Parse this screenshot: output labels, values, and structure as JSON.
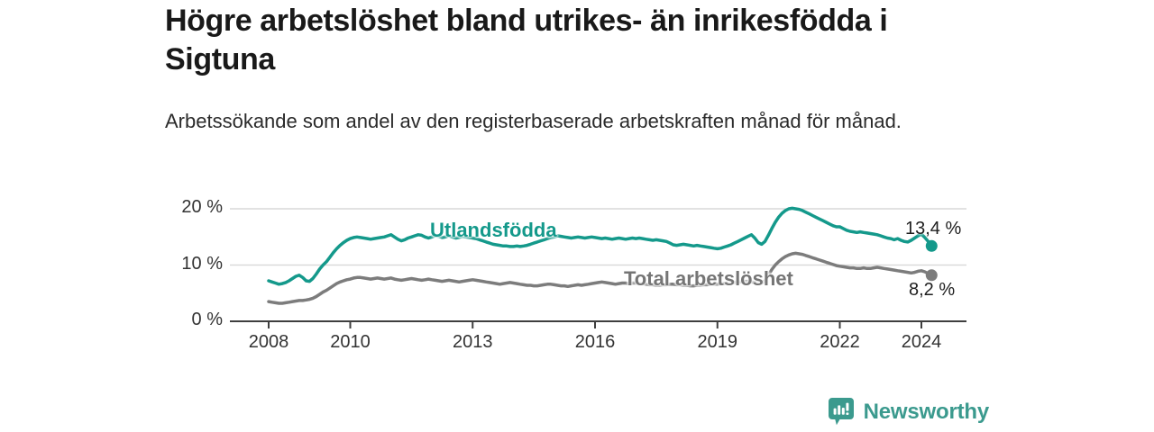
{
  "header": {
    "title": "Högre arbetslöshet bland utrikes- än inrikesfödda i Sigtuna",
    "subtitle": "Arbetssökande som andel av den registerbaserade arbetskraften månad för månad."
  },
  "chart_data": {
    "type": "line",
    "title": "Högre arbetslöshet bland utrikes- än inrikesfödda i Sigtuna",
    "subtitle": "Arbetssökande som andel av den registerbaserade arbetskraften månad för månad.",
    "x_unit": "month",
    "x_start_year": 2008,
    "x_end": "2024-04",
    "xticks": [
      2008,
      2010,
      2013,
      2016,
      2019,
      2022,
      2024
    ],
    "ytick_values": [
      0,
      10,
      20
    ],
    "ytick_labels": [
      "0 %",
      "10 %",
      "20 %"
    ],
    "ylim": [
      0,
      21.6
    ],
    "grid": "horizontal",
    "legend_position": "inline-on-lines",
    "axis_color": "#3f3f3f",
    "grid_color": "#d9d9d9",
    "series": [
      {
        "name": "Utlandsfödda",
        "color": "#14998b",
        "end_label": "13,4 %",
        "end_value": 13.4,
        "values": [
          7.2,
          7.0,
          6.8,
          6.6,
          6.7,
          6.9,
          7.2,
          7.6,
          8.0,
          8.2,
          7.8,
          7.2,
          7.1,
          7.6,
          8.4,
          9.3,
          10.0,
          10.6,
          11.4,
          12.2,
          12.9,
          13.5,
          14.0,
          14.4,
          14.7,
          14.9,
          15.0,
          14.9,
          14.8,
          14.7,
          14.6,
          14.7,
          14.8,
          14.9,
          15.0,
          15.2,
          15.4,
          15.0,
          14.6,
          14.3,
          14.5,
          14.8,
          15.0,
          15.2,
          15.4,
          15.3,
          15.0,
          14.8,
          15.0,
          15.2,
          15.1,
          14.9,
          15.0,
          15.2,
          15.0,
          14.8,
          14.9,
          15.1,
          15.0,
          14.9,
          14.8,
          14.7,
          14.5,
          14.3,
          14.1,
          13.9,
          13.7,
          13.6,
          13.5,
          13.4,
          13.4,
          13.3,
          13.3,
          13.4,
          13.3,
          13.4,
          13.5,
          13.7,
          13.9,
          14.1,
          14.3,
          14.5,
          14.7,
          14.9,
          15.0,
          15.2,
          15.1,
          15.0,
          14.9,
          14.8,
          14.9,
          15.0,
          14.9,
          14.8,
          14.9,
          15.0,
          14.9,
          14.8,
          14.7,
          14.8,
          14.7,
          14.6,
          14.7,
          14.8,
          14.7,
          14.6,
          14.7,
          14.8,
          14.7,
          14.8,
          14.7,
          14.6,
          14.5,
          14.4,
          14.5,
          14.4,
          14.3,
          14.2,
          13.9,
          13.6,
          13.5,
          13.6,
          13.7,
          13.6,
          13.5,
          13.4,
          13.5,
          13.4,
          13.3,
          13.2,
          13.1,
          13.0,
          12.9,
          13.0,
          13.2,
          13.4,
          13.6,
          13.9,
          14.2,
          14.5,
          14.8,
          15.1,
          15.4,
          14.8,
          14.0,
          13.7,
          14.2,
          15.3,
          16.5,
          17.6,
          18.5,
          19.2,
          19.7,
          20.0,
          20.1,
          20.0,
          19.9,
          19.7,
          19.4,
          19.1,
          18.8,
          18.5,
          18.2,
          17.9,
          17.6,
          17.3,
          17.0,
          16.8,
          16.8,
          16.5,
          16.2,
          16.0,
          15.9,
          15.8,
          15.9,
          15.8,
          15.7,
          15.6,
          15.5,
          15.4,
          15.2,
          15.0,
          14.8,
          14.7,
          14.5,
          14.7,
          14.4,
          14.2,
          14.1,
          14.4,
          14.8,
          15.2,
          15.5,
          14.9,
          14.2,
          13.4
        ]
      },
      {
        "name": "Total arbetslöshet",
        "color": "#7c7c7c",
        "end_label": "8,2 %",
        "end_value": 8.2,
        "values": [
          3.5,
          3.4,
          3.3,
          3.2,
          3.2,
          3.3,
          3.4,
          3.5,
          3.6,
          3.7,
          3.7,
          3.8,
          3.9,
          4.1,
          4.4,
          4.8,
          5.2,
          5.5,
          5.9,
          6.3,
          6.7,
          7.0,
          7.2,
          7.4,
          7.5,
          7.7,
          7.8,
          7.8,
          7.7,
          7.6,
          7.5,
          7.6,
          7.7,
          7.6,
          7.5,
          7.6,
          7.7,
          7.5,
          7.4,
          7.3,
          7.4,
          7.5,
          7.6,
          7.5,
          7.4,
          7.3,
          7.4,
          7.5,
          7.4,
          7.3,
          7.2,
          7.1,
          7.2,
          7.3,
          7.2,
          7.1,
          7.0,
          7.1,
          7.2,
          7.3,
          7.4,
          7.3,
          7.2,
          7.1,
          7.0,
          6.9,
          6.8,
          6.7,
          6.6,
          6.7,
          6.8,
          6.9,
          6.8,
          6.7,
          6.6,
          6.5,
          6.4,
          6.4,
          6.3,
          6.3,
          6.4,
          6.5,
          6.6,
          6.6,
          6.5,
          6.4,
          6.3,
          6.3,
          6.2,
          6.3,
          6.4,
          6.5,
          6.4,
          6.5,
          6.6,
          6.7,
          6.8,
          6.9,
          7.0,
          6.9,
          6.8,
          6.7,
          6.6,
          6.7,
          6.8,
          6.8,
          6.7,
          6.8,
          6.8,
          6.7,
          6.7,
          6.6,
          6.5,
          6.5,
          6.4,
          6.4,
          6.5,
          6.5,
          6.6,
          6.6,
          6.5,
          6.5,
          6.4,
          6.4,
          6.3,
          6.3,
          6.4,
          6.4,
          6.5,
          6.5,
          6.6,
          6.6,
          6.6,
          6.7,
          6.7,
          6.8,
          6.8,
          6.9,
          7.0,
          7.0,
          7.1,
          7.1,
          7.0,
          6.9,
          6.9,
          6.8,
          7.2,
          8.2,
          9.2,
          10.0,
          10.6,
          11.1,
          11.5,
          11.8,
          12.0,
          12.1,
          12.0,
          11.9,
          11.7,
          11.5,
          11.3,
          11.1,
          10.9,
          10.7,
          10.5,
          10.3,
          10.1,
          9.9,
          9.8,
          9.7,
          9.6,
          9.5,
          9.5,
          9.4,
          9.4,
          9.5,
          9.4,
          9.4,
          9.5,
          9.6,
          9.5,
          9.4,
          9.3,
          9.2,
          9.1,
          9.0,
          8.9,
          8.8,
          8.7,
          8.6,
          8.7,
          8.9,
          9.0,
          8.8,
          8.5,
          8.2
        ]
      }
    ]
  },
  "footer": {
    "brand": "Newsworthy",
    "brand_color": "#3b9a8e",
    "logo_icon": "bar-chart-speech-bubble-icon"
  }
}
